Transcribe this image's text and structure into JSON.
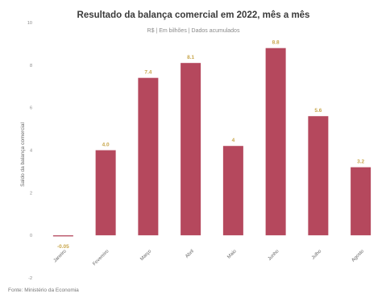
{
  "chart_data": {
    "type": "bar",
    "title": "Resultado da balança comercial em 2022, mês a mês",
    "subtitle": "R$ | Em bilhões | Dados acumulados",
    "ylabel": "Saldo da balança comercial",
    "xlabel": "",
    "categories": [
      "Janeiro",
      "Fevereiro",
      "Março",
      "Abril",
      "Maio",
      "Junho",
      "Julho",
      "Agosto"
    ],
    "values": [
      -0.05,
      4.0,
      7.4,
      8.1,
      4.2,
      8.8,
      5.6,
      3.2
    ],
    "data_labels": [
      "-0.05",
      "4.0",
      "7.4",
      "8.1",
      "4",
      "8.8",
      "5.6",
      "3.2"
    ],
    "ylim": [
      -2,
      10
    ],
    "yticks": [
      -2,
      0,
      2,
      4,
      6,
      8,
      10
    ],
    "grid": false,
    "legend": "none",
    "bar_color": "#b5485d",
    "label_color": "#c8a64b",
    "source": "Fonte: Ministério da Economia"
  }
}
